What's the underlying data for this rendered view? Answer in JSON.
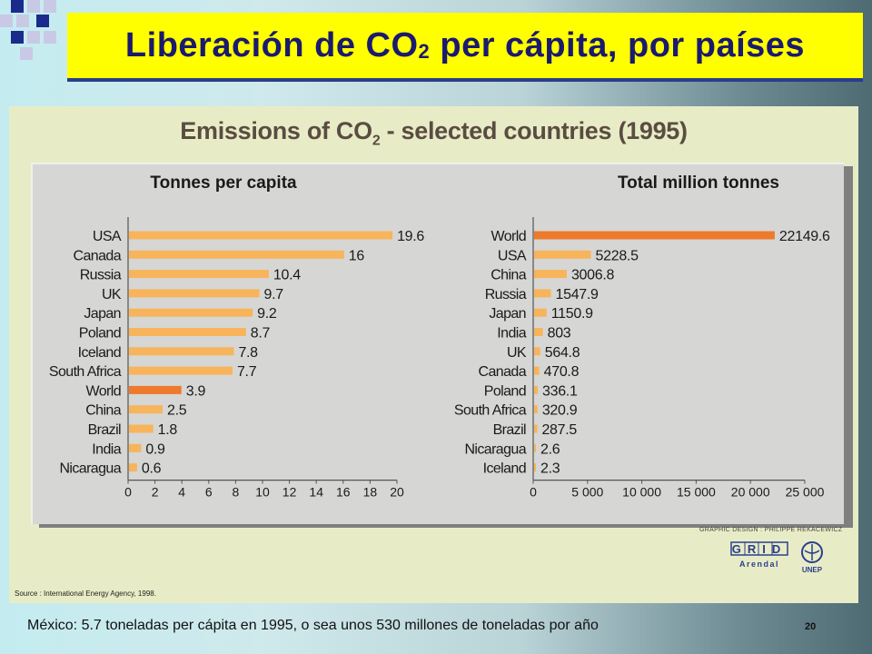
{
  "slide": {
    "title_main": "Liberación de CO",
    "title_sub": "2",
    "title_rest": " per cápita, por países",
    "footnote": "México: 5.7 toneladas per cápita en 1995, o sea unos 530 millones de toneladas por año",
    "page_number": "20"
  },
  "figure": {
    "title_main": "Emissions of CO",
    "title_sub": "2",
    "title_rest": " - selected countries (1995)",
    "credit": "GRAPHIC DESIGN : PHILIPPE REKACEWICZ",
    "source": "Source : International Energy Agency, 1998.",
    "logo_grid": "GRID",
    "logo_arendal": "Arendal",
    "logo_unep": "UNEP"
  },
  "colors": {
    "bar": "#f7b45a",
    "bar_highlight": "#ee7a2c",
    "axis": "#555555"
  },
  "chart_data": [
    {
      "type": "bar",
      "orientation": "horizontal",
      "title": "Tonnes per capita",
      "categories": [
        "USA",
        "Canada",
        "Russia",
        "UK",
        "Japan",
        "Poland",
        "Iceland",
        "South Africa",
        "World",
        "China",
        "Brazil",
        "India",
        "Nicaragua"
      ],
      "values": [
        19.6,
        16,
        10.4,
        9.7,
        9.2,
        8.7,
        7.8,
        7.7,
        3.9,
        2.5,
        1.8,
        0.9,
        0.6
      ],
      "value_labels": [
        "19.6",
        "16",
        "10.4",
        "9.7",
        "9.2",
        "8.7",
        "7.8",
        "7.7",
        "3.9",
        "2.5",
        "1.8",
        "0.9",
        "0.6"
      ],
      "highlight": "World",
      "xlim": [
        0,
        20
      ],
      "xticks": [
        0,
        2,
        4,
        6,
        8,
        10,
        12,
        14,
        16,
        18,
        20
      ],
      "xtick_labels": [
        "0",
        "2",
        "4",
        "6",
        "8",
        "10",
        "12",
        "14",
        "16",
        "18",
        "20"
      ],
      "grid": false
    },
    {
      "type": "bar",
      "orientation": "horizontal",
      "title": "Total million tonnes",
      "categories": [
        "World",
        "USA",
        "China",
        "Russia",
        "Japan",
        "India",
        "UK",
        "Canada",
        "Poland",
        "South Africa",
        "Brazil",
        "Nicaragua",
        "Iceland"
      ],
      "values": [
        22149.6,
        5228.5,
        3006.8,
        1547.9,
        1150.9,
        803,
        564.8,
        470.8,
        336.1,
        320.9,
        287.5,
        2.6,
        2.3
      ],
      "value_labels": [
        "22149.6",
        "5228.5",
        "3006.8",
        "1547.9",
        "1150.9",
        "803",
        "564.8",
        "470.8",
        "336.1",
        "320.9",
        "287.5",
        "2.6",
        "2.3"
      ],
      "highlight": "World",
      "xlim": [
        0,
        25000
      ],
      "xticks": [
        0,
        5000,
        10000,
        15000,
        20000,
        25000
      ],
      "xtick_labels": [
        "0",
        "5 000",
        "10 000",
        "15 000",
        "20 000",
        "25 000"
      ],
      "grid": false
    }
  ]
}
